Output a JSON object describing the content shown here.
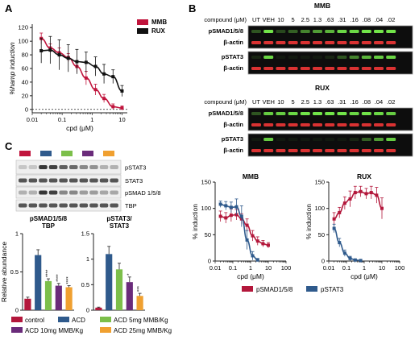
{
  "panel_letters": [
    "A",
    "B",
    "C"
  ],
  "panelA": {
    "ylabel": "%hamp induction",
    "xlabel": "cpd (μM)",
    "legend": [
      {
        "name": "MMB",
        "color": "#c0143c"
      },
      {
        "name": "RUX",
        "color": "#111111"
      }
    ],
    "yticks": [
      "0",
      "20",
      "40",
      "60",
      "80",
      "100",
      "120"
    ],
    "xticks": [
      "0.01",
      "0.1",
      "1",
      "10"
    ]
  },
  "panelB": {
    "compound_label": "compound (μM)",
    "lanes": [
      "UT",
      "VEH",
      "10",
      "5",
      "2.5",
      "1.3",
      ".63",
      ".31",
      ".16",
      ".08",
      ".04",
      ".02"
    ],
    "blocks": [
      {
        "title": "MMB",
        "rows": [
          "pSMAD1/5/8",
          "β-actin",
          "pSTAT3",
          "β-actin"
        ]
      },
      {
        "title": "RUX",
        "rows": [
          "pSMAD1/5/8",
          "β-actin",
          "pSTAT3",
          "β-actin"
        ]
      }
    ]
  },
  "panelB_charts": {
    "ylabel": "% induction",
    "xlabel": "cpd (μM)",
    "yticks": [
      "0",
      "50",
      "100",
      "150"
    ],
    "xticks": [
      "0.01",
      "0.1",
      "1",
      "10",
      "100"
    ],
    "legend": [
      {
        "name": "pSMAD1/5/8",
        "color": "#b3173b"
      },
      {
        "name": "pSTAT3",
        "color": "#2f5a8c"
      }
    ]
  },
  "panelC": {
    "blot_labels": [
      "pSTAT3",
      "STAT3",
      "pSMAD 1/5/8",
      "TBP"
    ],
    "lane_groups": [
      {
        "color": "#c0143c"
      },
      {
        "color": "#2f5a8c"
      },
      {
        "color": "#7cbf4a"
      },
      {
        "color": "#6a2b7a"
      },
      {
        "color": "#f0a030"
      }
    ],
    "ylabel": "Relative abundance",
    "legend": [
      {
        "name": "control",
        "color": "#b3173b"
      },
      {
        "name": "ACD",
        "color": "#2f5a8c"
      },
      {
        "name": "ACD 5mg MMB/Kg",
        "color": "#7cbf4a"
      },
      {
        "name": "ACD 10mg MMB/Kg",
        "color": "#6a2b7a"
      },
      {
        "name": "ACD 25mg MMB/Kg",
        "color": "#f0a030"
      }
    ]
  },
  "chart_data": [
    {
      "type": "line",
      "panel": "A",
      "xscale": "log",
      "xlim": [
        0.01,
        15
      ],
      "ylim": [
        -5,
        125
      ],
      "ylabel": "%hamp induction",
      "xlabel": "cpd (μM)",
      "series": [
        {
          "name": "MMB",
          "color": "#c0143c",
          "x": [
            0.02,
            0.04,
            0.08,
            0.16,
            0.31,
            0.63,
            1.3,
            2.5,
            5,
            10
          ],
          "y": [
            104,
            90,
            83,
            76,
            63,
            46,
            29,
            16,
            4,
            2
          ],
          "err": [
            8,
            6,
            7,
            6,
            8,
            10,
            8,
            6,
            4,
            3
          ]
        },
        {
          "name": "RUX",
          "color": "#111111",
          "x": [
            0.02,
            0.04,
            0.08,
            0.16,
            0.31,
            0.63,
            1.3,
            2.5,
            5,
            10
          ],
          "y": [
            86,
            87,
            80,
            75,
            70,
            69,
            63,
            52,
            48,
            27
          ],
          "err": [
            18,
            20,
            22,
            20,
            18,
            15,
            14,
            14,
            10,
            8
          ]
        }
      ]
    },
    {
      "type": "line",
      "panel": "B",
      "title": "MMB",
      "xscale": "log",
      "xlim": [
        0.01,
        100
      ],
      "ylim": [
        0,
        150
      ],
      "ylabel": "% induction",
      "xlabel": "cpd (μM)",
      "series": [
        {
          "name": "pSMAD1/5/8",
          "color": "#b3173b",
          "x": [
            0.02,
            0.04,
            0.08,
            0.16,
            0.31,
            0.63,
            1.3,
            2.5,
            5,
            10
          ],
          "y": [
            85,
            82,
            87,
            88,
            80,
            68,
            48,
            38,
            33,
            30
          ],
          "err": [
            10,
            10,
            12,
            10,
            10,
            12,
            10,
            8,
            6,
            5
          ]
        },
        {
          "name": "pSTAT3",
          "color": "#2f5a8c",
          "x": [
            0.02,
            0.04,
            0.08,
            0.16,
            0.31,
            0.63,
            1.3,
            2.5
          ],
          "y": [
            108,
            105,
            102,
            103,
            85,
            40,
            10,
            2
          ],
          "err": [
            6,
            8,
            10,
            15,
            20,
            18,
            8,
            3
          ]
        }
      ]
    },
    {
      "type": "line",
      "panel": "B",
      "title": "RUX",
      "xscale": "log",
      "xlim": [
        0.01,
        100
      ],
      "ylim": [
        0,
        150
      ],
      "ylabel": "% induction",
      "xlabel": "cpd (μM)",
      "series": [
        {
          "name": "pSMAD1/5/8",
          "color": "#b3173b",
          "x": [
            0.02,
            0.04,
            0.08,
            0.16,
            0.31,
            0.63,
            1.3,
            2.5,
            5,
            10
          ],
          "y": [
            80,
            92,
            110,
            118,
            130,
            132,
            128,
            130,
            125,
            100
          ],
          "err": [
            12,
            10,
            12,
            15,
            12,
            10,
            10,
            12,
            15,
            20
          ]
        },
        {
          "name": "pSTAT3",
          "color": "#2f5a8c",
          "x": [
            0.02,
            0.04,
            0.08,
            0.16,
            0.31,
            0.63
          ],
          "y": [
            62,
            35,
            15,
            5,
            2,
            1
          ],
          "err": [
            8,
            8,
            6,
            4,
            2,
            1
          ]
        }
      ]
    },
    {
      "type": "bar",
      "panel": "C",
      "title": "pSMAD1/5/8\nTBP",
      "ylabel": "Relative abundance",
      "ylim": [
        0,
        1
      ],
      "yticks": [
        "0",
        "0.5",
        "1"
      ],
      "categories": [
        "control",
        "ACD",
        "ACD 5mg MMB/Kg",
        "ACD 10mg MMB/Kg",
        "ACD 25mg MMB/Kg"
      ],
      "colors": [
        "#b3173b",
        "#2f5a8c",
        "#7cbf4a",
        "#6a2b7a",
        "#f0a030"
      ],
      "values": [
        0.15,
        0.72,
        0.38,
        0.32,
        0.3
      ],
      "err": [
        0.02,
        0.07,
        0.03,
        0.03,
        0.02
      ],
      "annotations": [
        "",
        "",
        "****",
        "****",
        "****"
      ]
    },
    {
      "type": "bar",
      "panel": "C",
      "title": "pSTAT3/\nSTAT3",
      "ylim": [
        0,
        1.5
      ],
      "yticks": [
        "0",
        "0.5",
        "1",
        "1.5"
      ],
      "categories": [
        "control",
        "ACD",
        "ACD 5mg MMB/Kg",
        "ACD 10mg MMB/Kg",
        "ACD 25mg MMB/Kg"
      ],
      "colors": [
        "#b3173b",
        "#2f5a8c",
        "#7cbf4a",
        "#6a2b7a",
        "#f0a030"
      ],
      "values": [
        0.05,
        1.1,
        0.8,
        0.55,
        0.28
      ],
      "err": [
        0.01,
        0.15,
        0.12,
        0.1,
        0.05
      ],
      "annotations": [
        "",
        "",
        "",
        "*",
        "***"
      ]
    }
  ]
}
